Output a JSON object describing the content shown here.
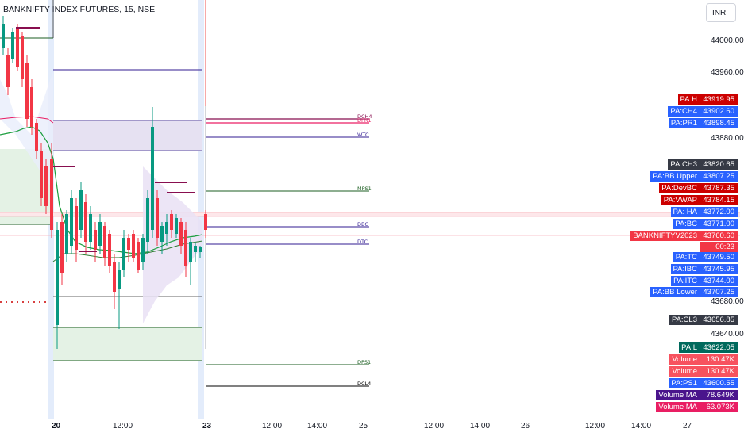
{
  "header": {
    "symbol_title": "BANKNIFTY INDEX FUTURES, 15, NSE",
    "currency": "INR"
  },
  "price_axis": {
    "ticks": [
      "44000.00",
      "43960.00",
      "43880.00",
      "43680.00",
      "43640.00"
    ]
  },
  "time_axis": {
    "labels": [
      "20",
      "12:00",
      "23",
      "12:00",
      "14:00",
      "25",
      "12:00",
      "14:00",
      "26",
      "12:00",
      "14:00",
      "27"
    ],
    "bold_labels": [
      "20",
      "23"
    ]
  },
  "level_lines": [
    {
      "label": "DCH4",
      "color": "#880e4f"
    },
    {
      "label": "DPR1",
      "color": "#e91e63"
    },
    {
      "label": "WTC",
      "color": "#311b92"
    },
    {
      "label": "MPS1",
      "color": "#1b5e20"
    },
    {
      "label": "DBC",
      "color": "#311b92"
    },
    {
      "label": "DTC",
      "color": "#311b92"
    },
    {
      "label": "DPS1",
      "color": "#1b5e20"
    },
    {
      "label": "DCL4",
      "color": "#000000"
    }
  ],
  "badges": [
    {
      "name": "PA:H",
      "value": "43919.95",
      "color": "#cc0000",
      "value_color": "#cc0000"
    },
    {
      "name": "PA:CH4",
      "value": "43902.60",
      "color": "#2962ff",
      "value_color": "#2962ff"
    },
    {
      "name": "PA:PR1",
      "value": "43898.45",
      "color": "#2962ff",
      "value_color": "#2962ff"
    },
    {
      "name": "PA:CH3",
      "value": "43820.65",
      "color": "#363a45",
      "value_color": "#363a45"
    },
    {
      "name": "PA:BB Upper",
      "value": "43807.25",
      "color": "#2962ff",
      "value_color": "#2962ff"
    },
    {
      "name": "PA:DevBC",
      "value": "43787.35",
      "color": "#cc0000",
      "value_color": "#cc0000"
    },
    {
      "name": "PA:VWAP",
      "value": "43784.15",
      "color": "#cc0000",
      "value_color": "#cc0000"
    },
    {
      "name": "PA: HA",
      "value": "43772.00",
      "color": "#2962ff",
      "value_color": "#2962ff"
    },
    {
      "name": "PA:BC",
      "value": "43771.00",
      "color": "#2962ff",
      "value_color": "#2962ff"
    },
    {
      "name": "BANKNIFTYV2023",
      "value": "43760.60",
      "color": "#f23645",
      "value_color": "#f23645"
    },
    {
      "name": "PA:TC",
      "value": "43749.50",
      "color": "#2962ff",
      "value_color": "#2962ff"
    },
    {
      "name": "PA:IBC",
      "value": "43745.95",
      "color": "#2962ff",
      "value_color": "#2962ff"
    },
    {
      "name": "PA:ITC",
      "value": "43744.00",
      "color": "#2962ff",
      "value_color": "#2962ff"
    },
    {
      "name": "PA:BB Lower",
      "value": "43707.25",
      "color": "#2962ff",
      "value_color": "#2962ff"
    },
    {
      "name": "PA:CL3",
      "value": "43656.85",
      "color": "#363a45",
      "value_color": "#363a45"
    },
    {
      "name": "PA:L",
      "value": "43622.05",
      "color": "#00695c",
      "value_color": "#00695c"
    },
    {
      "name": "Volume",
      "value": "130.47K",
      "color": "#f7525f",
      "value_color": "#f7525f"
    },
    {
      "name": "Volume",
      "value": "130.47K",
      "color": "#f7525f",
      "value_color": "#f7525f"
    },
    {
      "name": "PA:PS1",
      "value": "43600.55",
      "color": "#2962ff",
      "value_color": "#2962ff"
    },
    {
      "name": "Volume MA",
      "value": "78.649K",
      "color": "#4a148c",
      "value_color": "#4a148c"
    },
    {
      "name": "Volume MA",
      "value": "63.073K",
      "color": "#e91e63",
      "value_color": "#e91e63"
    }
  ],
  "countdown": "00:23",
  "colors": {
    "up_candle": "#089981",
    "down_candle": "#f23645",
    "session_highlight": "#e3ecfb",
    "cloud_purple": "#d1c4e9",
    "zone_green": "#d8eed9"
  }
}
